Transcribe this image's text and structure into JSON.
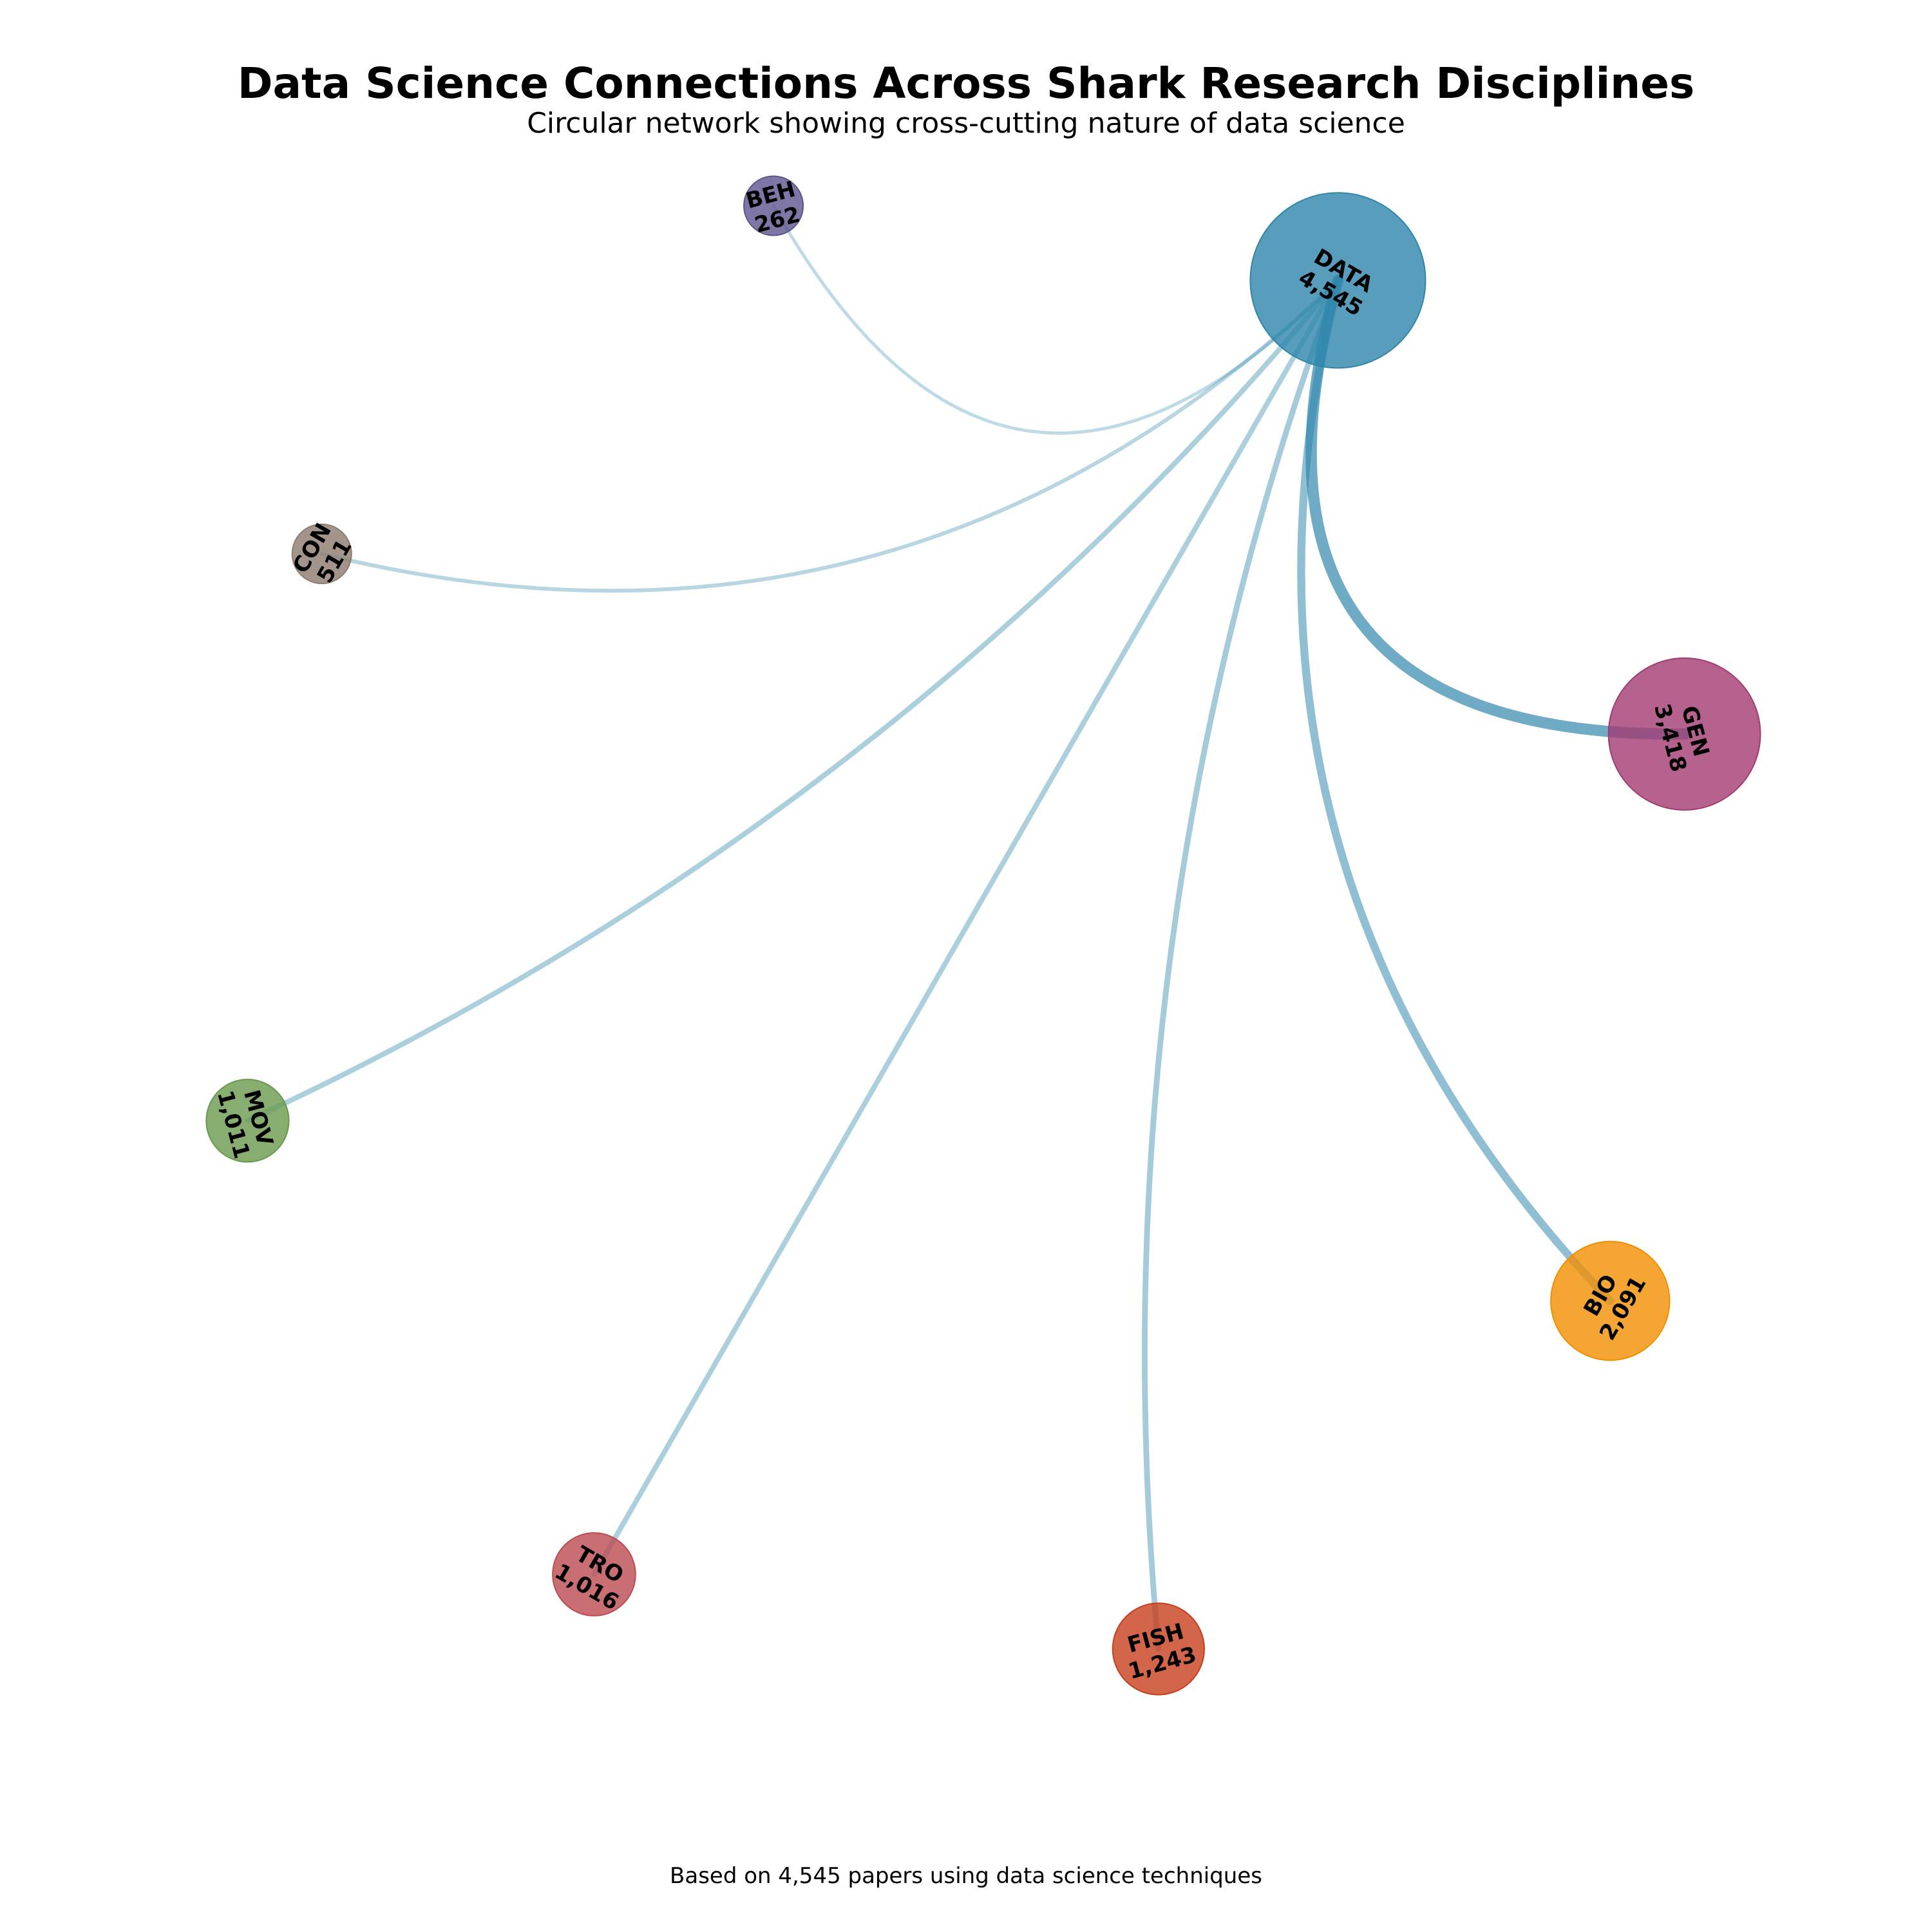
{
  "title": "Data Science Connections Across Shark Research Disciplines",
  "subtitle": "Circular network showing cross-cutting nature of data science",
  "footnote": "Based on 4,545 papers using data science techniques",
  "hub": "DATA",
  "chart_data": {
    "type": "network",
    "layout": "circular",
    "nodes": [
      {
        "id": "DATA",
        "label": "DATA",
        "count_label": "4,545",
        "count": 4545,
        "color": "#2E86AB"
      },
      {
        "id": "GEN",
        "label": "GEN",
        "count_label": "3,418",
        "count": 3418,
        "color": "#A23B72"
      },
      {
        "id": "BIO",
        "label": "BIO",
        "count_label": "2,091",
        "count": 2091,
        "color": "#F18F01"
      },
      {
        "id": "FISH",
        "label": "FISH",
        "count_label": "1,243",
        "count": 1243,
        "color": "#C73E1D"
      },
      {
        "id": "TRO",
        "label": "TRO",
        "count_label": "1,016",
        "count": 1016,
        "color": "#BC4B51"
      },
      {
        "id": "MOV",
        "label": "MOV",
        "count_label": "1,011",
        "count": 1011,
        "color": "#6A994E"
      },
      {
        "id": "CON",
        "label": "CON",
        "count_label": "511",
        "count": 511,
        "color": "#8D7B6F"
      },
      {
        "id": "BEH",
        "label": "BEH",
        "count_label": "262",
        "count": 262,
        "color": "#5E548E"
      }
    ],
    "edges": [
      {
        "source": "DATA",
        "target": "GEN",
        "weight": 3418
      },
      {
        "source": "DATA",
        "target": "BIO",
        "weight": 2091
      },
      {
        "source": "DATA",
        "target": "FISH",
        "weight": 1243
      },
      {
        "source": "DATA",
        "target": "TRO",
        "weight": 1016
      },
      {
        "source": "DATA",
        "target": "MOV",
        "weight": 1011
      },
      {
        "source": "DATA",
        "target": "CON",
        "weight": 511
      },
      {
        "source": "DATA",
        "target": "BEH",
        "weight": 262
      }
    ],
    "edge_color": "#2E86AB"
  }
}
